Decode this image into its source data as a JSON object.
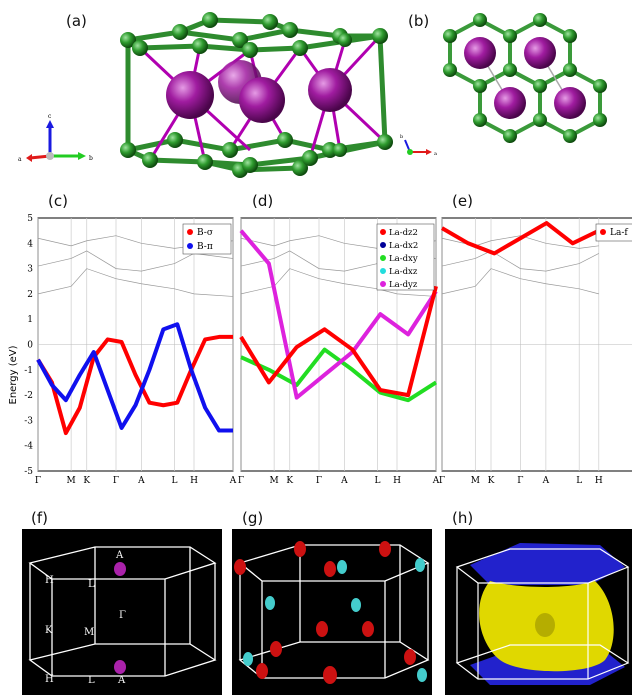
{
  "panel_labels": {
    "a": "(a)",
    "b": "(b)",
    "c": "(c)",
    "d": "(d)",
    "e": "(e)",
    "f": "(f)",
    "g": "(g)",
    "h": "(h)"
  },
  "crystal_axes": {
    "a_label": "a",
    "b_label": "b",
    "c_label": "c"
  },
  "colors": {
    "boron": "#2e8b2e",
    "lanthanum": "#8e1a8e",
    "bond_magenta": "#b000b0",
    "red": "#ff0000",
    "blue": "#1010ee",
    "green": "#22dd22",
    "cyan": "#22dddd",
    "magenta": "#dd22dd",
    "navy": "#000099",
    "yellow": "#e8e000"
  },
  "chart_data": [
    {
      "type": "line",
      "panel": "(c)",
      "ylabel": "Energy (eV)",
      "ylim": [
        -5,
        5
      ],
      "yticks": [
        "5",
        "4",
        "3",
        "2",
        "1",
        "0",
        "-1",
        "-2",
        "-3",
        "-4",
        "-5"
      ],
      "kpath": [
        "Γ",
        "M",
        "K",
        "Γ",
        "A",
        "L",
        "H",
        "A"
      ],
      "legend": [
        {
          "name": "B-σ",
          "color": "#ff0000"
        },
        {
          "name": "B-π",
          "color": "#1010ee"
        }
      ],
      "series": [
        {
          "name": "B-σ",
          "x": [
            0,
            0.5,
            1,
            1.5,
            2,
            2.5,
            3,
            3.5,
            4,
            4.5,
            5,
            5.5,
            6,
            6.5,
            7
          ],
          "y": [
            -0.6,
            -1.5,
            -3.5,
            -2.5,
            -0.5,
            0.2,
            0.1,
            -1.2,
            -2.3,
            -2.4,
            -2.3,
            -1.0,
            0.2,
            0.3,
            0.3
          ]
        },
        {
          "name": "B-π",
          "x": [
            0,
            0.5,
            1,
            1.5,
            2,
            2.5,
            3,
            3.5,
            4,
            4.5,
            5,
            5.5,
            6,
            6.5,
            7
          ],
          "y": [
            -0.6,
            -1.6,
            -2.2,
            -1.2,
            -0.3,
            -1.8,
            -3.3,
            -2.4,
            -1.0,
            0.6,
            0.8,
            -1.0,
            -2.5,
            -3.4,
            -3.4
          ]
        }
      ]
    },
    {
      "type": "line",
      "panel": "(d)",
      "ylim": [
        -5,
        5
      ],
      "kpath": [
        "Γ",
        "M",
        "K",
        "Γ",
        "A",
        "L",
        "H",
        "A"
      ],
      "legend": [
        {
          "name": "La-dz2",
          "color": "#ff0000"
        },
        {
          "name": "La-dx2",
          "color": "#000099"
        },
        {
          "name": "La-dxy",
          "color": "#22dd22"
        },
        {
          "name": "La-dxz",
          "color": "#22dddd"
        },
        {
          "name": "La-dyz",
          "color": "#dd22dd"
        }
      ],
      "series": [
        {
          "name": "La-dxy",
          "x": [
            0,
            1,
            2,
            3,
            4,
            5,
            6,
            7
          ],
          "y": [
            -0.5,
            -1.0,
            -1.6,
            -0.2,
            -1.0,
            -1.9,
            -2.2,
            -1.5
          ]
        },
        {
          "name": "La-dyz",
          "x": [
            0,
            1,
            2,
            3,
            4,
            5,
            6,
            7
          ],
          "y": [
            4.5,
            3.2,
            -2.1,
            -1.2,
            -0.3,
            1.2,
            0.4,
            2.1
          ]
        },
        {
          "name": "La-dz2",
          "x": [
            0,
            1,
            2,
            3,
            4,
            5,
            6,
            7
          ],
          "y": [
            0.3,
            -1.5,
            -0.1,
            0.6,
            -0.2,
            -1.8,
            -2.0,
            2.3
          ]
        }
      ]
    },
    {
      "type": "line",
      "panel": "(e)",
      "ylim": [
        -5,
        5
      ],
      "kpath": [
        "Γ",
        "M",
        "K",
        "Γ",
        "A",
        "L",
        "H"
      ],
      "legend": [
        {
          "name": "La-f",
          "color": "#ff0000"
        }
      ],
      "series": [
        {
          "name": "La-f",
          "x": [
            0,
            1,
            2,
            3,
            4,
            5,
            6
          ],
          "y": [
            4.6,
            4.0,
            3.6,
            4.2,
            4.8,
            4.0,
            4.5
          ]
        }
      ]
    }
  ],
  "bz_labels": {
    "f": [
      {
        "t": "A"
      },
      {
        "t": "H"
      },
      {
        "t": "L"
      },
      {
        "t": "Γ"
      },
      {
        "t": "K"
      },
      {
        "t": "M"
      },
      {
        "t": "H"
      },
      {
        "t": "L"
      },
      {
        "t": "A"
      }
    ]
  }
}
